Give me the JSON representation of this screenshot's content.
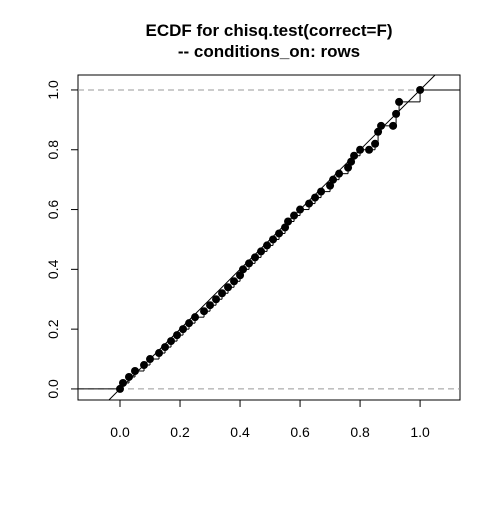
{
  "chart_data": {
    "type": "ecdf",
    "title": "ECDF for chisq.test(correct=F)",
    "subtitle": "-- conditions_on: rows",
    "x": [
      0,
      0.01,
      0.03,
      0.05,
      0.08,
      0.1,
      0.13,
      0.15,
      0.17,
      0.19,
      0.21,
      0.23,
      0.25,
      0.28,
      0.3,
      0.32,
      0.34,
      0.36,
      0.38,
      0.4,
      0.41,
      0.43,
      0.45,
      0.47,
      0.49,
      0.51,
      0.53,
      0.55,
      0.56,
      0.58,
      0.6,
      0.63,
      0.65,
      0.67,
      0.7,
      0.71,
      0.73,
      0.76,
      0.77,
      0.78,
      0.8,
      0.83,
      0.85,
      0.86,
      0.87,
      0.91,
      0.92,
      0.93,
      1
    ],
    "values": [
      0,
      0.02,
      0.04,
      0.06,
      0.08,
      0.1,
      0.12,
      0.14,
      0.16,
      0.18,
      0.2,
      0.22,
      0.24,
      0.26,
      0.28,
      0.3,
      0.32,
      0.34,
      0.36,
      0.38,
      0.4,
      0.42,
      0.44,
      0.46,
      0.48,
      0.5,
      0.52,
      0.54,
      0.56,
      0.58,
      0.6,
      0.62,
      0.64,
      0.66,
      0.68,
      0.7,
      0.72,
      0.74,
      0.76,
      0.78,
      0.8,
      0.8,
      0.82,
      0.86,
      0.88,
      0.88,
      0.92,
      0.96,
      1
    ],
    "color": "#000000",
    "xlim": [
      -0.14,
      1.133
    ],
    "ylim": [
      -0.037,
      1.05
    ],
    "xticks": [
      {
        "value": 0,
        "label": "0.0"
      },
      {
        "value": 0.2,
        "label": "0.2"
      },
      {
        "value": 0.4,
        "label": "0.4"
      },
      {
        "value": 0.6,
        "label": "0.6"
      },
      {
        "value": 0.8,
        "label": "0.8"
      },
      {
        "value": 1,
        "label": "1.0"
      }
    ],
    "yticks": [
      {
        "value": 0,
        "label": "0.0"
      },
      {
        "value": 0.2,
        "label": "0.2"
      },
      {
        "value": 0.4,
        "label": "0.4"
      },
      {
        "value": 0.6,
        "label": "0.6"
      },
      {
        "value": 0.8,
        "label": "0.8"
      },
      {
        "value": 1,
        "label": "1.0"
      }
    ],
    "hlines": [
      0,
      1
    ],
    "diagonal": true
  }
}
